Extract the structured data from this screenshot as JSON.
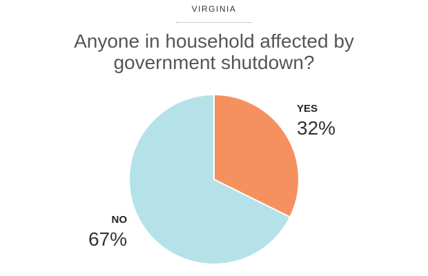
{
  "chart_data": {
    "type": "pie",
    "subtitle": "VIRGINIA",
    "title": "Anyone in household affected by government shutdown?",
    "categories": [
      "YES",
      "NO"
    ],
    "values": [
      32,
      67
    ],
    "value_labels": [
      "32%",
      "67%"
    ],
    "colors": [
      "#f5915f",
      "#b5e2e8"
    ]
  }
}
